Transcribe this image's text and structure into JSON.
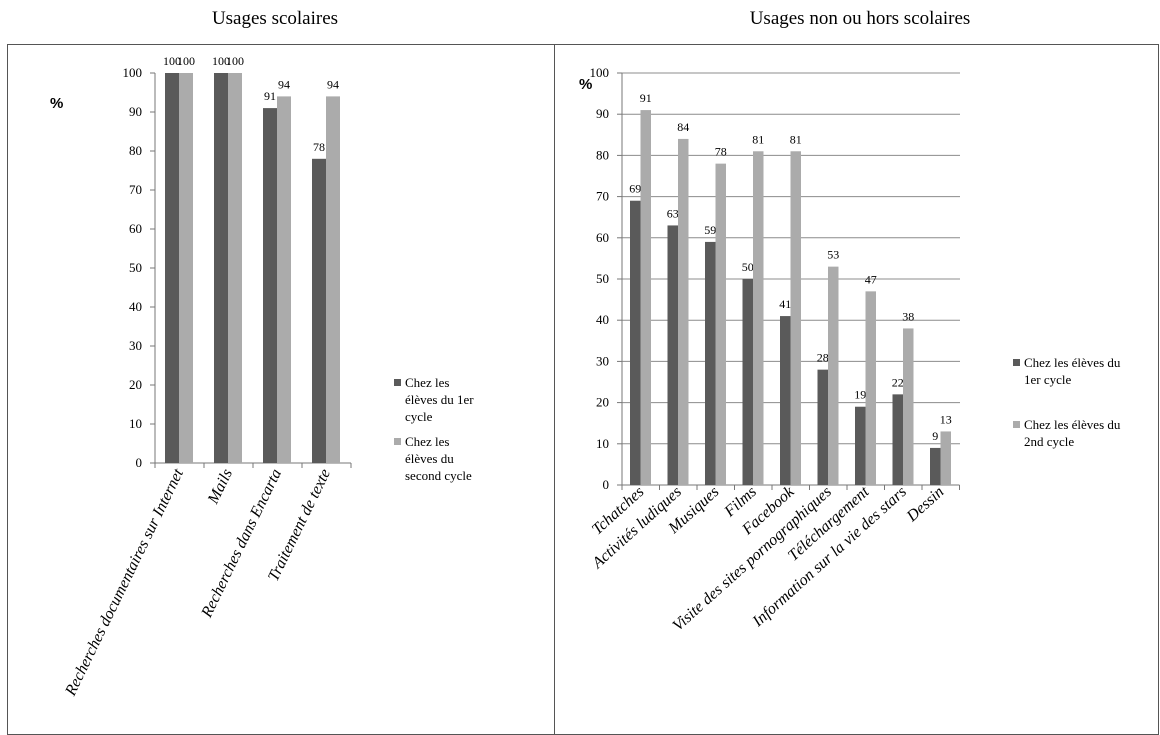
{
  "titles": {
    "left": "Usages scolaires",
    "right": "Usages non ou hors scolaires"
  },
  "colors": {
    "series1": "#5a5a5a",
    "series2": "#ababab",
    "grid": "#8c8c8c"
  },
  "chart_data": [
    {
      "type": "bar",
      "title": "Usages scolaires",
      "ylabel": "%",
      "ylim": [
        0,
        100
      ],
      "yticks": [
        0,
        10,
        20,
        30,
        40,
        50,
        60,
        70,
        80,
        90,
        100
      ],
      "grid": false,
      "legend_position": "right",
      "categories": [
        "Recherches documentaires sur Internet",
        "Mails",
        "Recherches dans Encarta",
        "Traitement de texte"
      ],
      "series": [
        {
          "name": "Chez les élèves du 1er cycle",
          "legend_lines": [
            "Chez les",
            "élèves du 1er",
            "cycle"
          ],
          "values": [
            100,
            100,
            91,
            78
          ]
        },
        {
          "name": "Chez les élèves du second cycle",
          "legend_lines": [
            "Chez les",
            "élèves du",
            "second cycle"
          ],
          "values": [
            100,
            100,
            94,
            94
          ]
        }
      ]
    },
    {
      "type": "bar",
      "title": "Usages non ou hors scolaires",
      "ylabel": "%",
      "ylim": [
        0,
        100
      ],
      "yticks": [
        0,
        10,
        20,
        30,
        40,
        50,
        60,
        70,
        80,
        90,
        100
      ],
      "grid": true,
      "legend_position": "right",
      "categories": [
        "Tchatches",
        "Activités ludiques",
        "Musiques",
        "Films",
        "Facebook",
        "Visite des sites pornographiques",
        "Téléchargement",
        "Information sur la vie des stars",
        "Dessin"
      ],
      "series": [
        {
          "name": "Chez les élèves du 1er cycle",
          "legend_lines": [
            "Chez les élèves du",
            "1er cycle"
          ],
          "values": [
            69,
            63,
            59,
            50,
            41,
            28,
            19,
            22,
            9
          ]
        },
        {
          "name": "Chez les élèves du 2nd cycle",
          "legend_lines": [
            "Chez les élèves du",
            "2nd cycle"
          ],
          "values": [
            91,
            84,
            78,
            81,
            81,
            53,
            47,
            38,
            13
          ]
        }
      ]
    }
  ]
}
